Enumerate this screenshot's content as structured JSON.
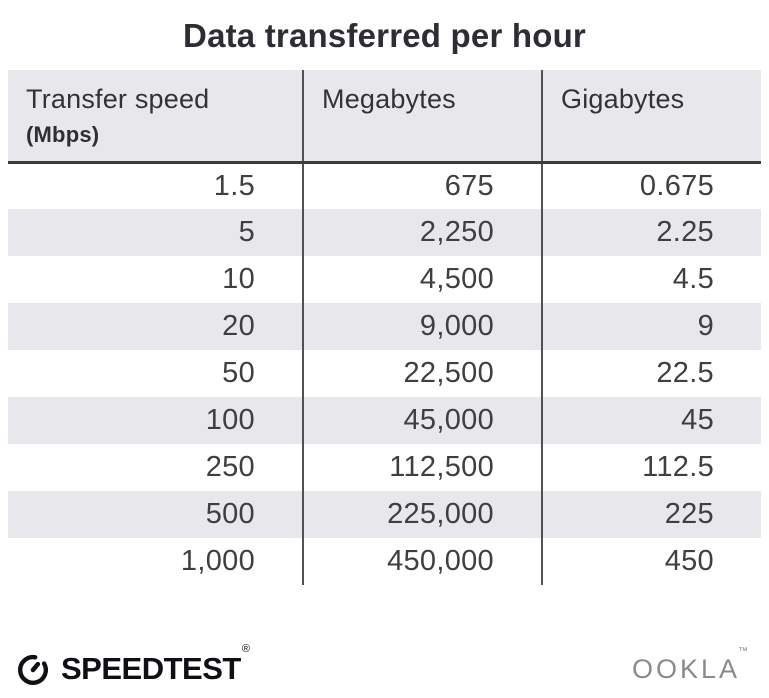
{
  "title": "Data transferred per hour",
  "table": {
    "header": {
      "col1_line1": "Transfer speed",
      "col1_line2": "(Mbps)",
      "col2": "Megabytes",
      "col3": "Gigabytes"
    },
    "col_keys": [
      "transfer-speed-mbps",
      "megabytes",
      "gigabytes"
    ],
    "rows": [
      [
        "1.5",
        "675",
        "0.675"
      ],
      [
        "5",
        "2,250",
        "2.25"
      ],
      [
        "10",
        "4,500",
        "4.5"
      ],
      [
        "20",
        "9,000",
        "9"
      ],
      [
        "50",
        "22,500",
        "22.5"
      ],
      [
        "100",
        "45,000",
        "45"
      ],
      [
        "250",
        "112,500",
        "112.5"
      ],
      [
        "500",
        "225,000",
        "225"
      ],
      [
        "1,000",
        "450,000",
        "450"
      ]
    ]
  },
  "chart_data": {
    "type": "table",
    "title": "Data transferred per hour",
    "columns": [
      "Transfer speed (Mbps)",
      "Megabytes",
      "Gigabytes"
    ],
    "rows": [
      [
        1.5,
        675,
        0.675
      ],
      [
        5,
        2250,
        2.25
      ],
      [
        10,
        4500,
        4.5
      ],
      [
        20,
        9000,
        9
      ],
      [
        50,
        22500,
        22.5
      ],
      [
        100,
        45000,
        45
      ],
      [
        250,
        112500,
        112.5
      ],
      [
        500,
        225000,
        225
      ],
      [
        1000,
        450000,
        450
      ]
    ],
    "notes": "alternating row shading, right-aligned numeric cells"
  },
  "footer": {
    "speedtest_label": "SPEEDTEST",
    "speedtest_mark": "®",
    "ookla_label": "OOKLA",
    "ookla_mark": "™"
  },
  "colors": {
    "background": "#ffffff",
    "header_bg": "#e8e8ec",
    "stripe_bg": "#e8e8ec",
    "column_divider": "#515153",
    "header_underline": "#3b3b3d",
    "body_text": "#3f3f41",
    "title_text": "#2d2d33",
    "speedtest_logo": "#0f0f14",
    "ookla_logo": "#8b8b8b"
  }
}
